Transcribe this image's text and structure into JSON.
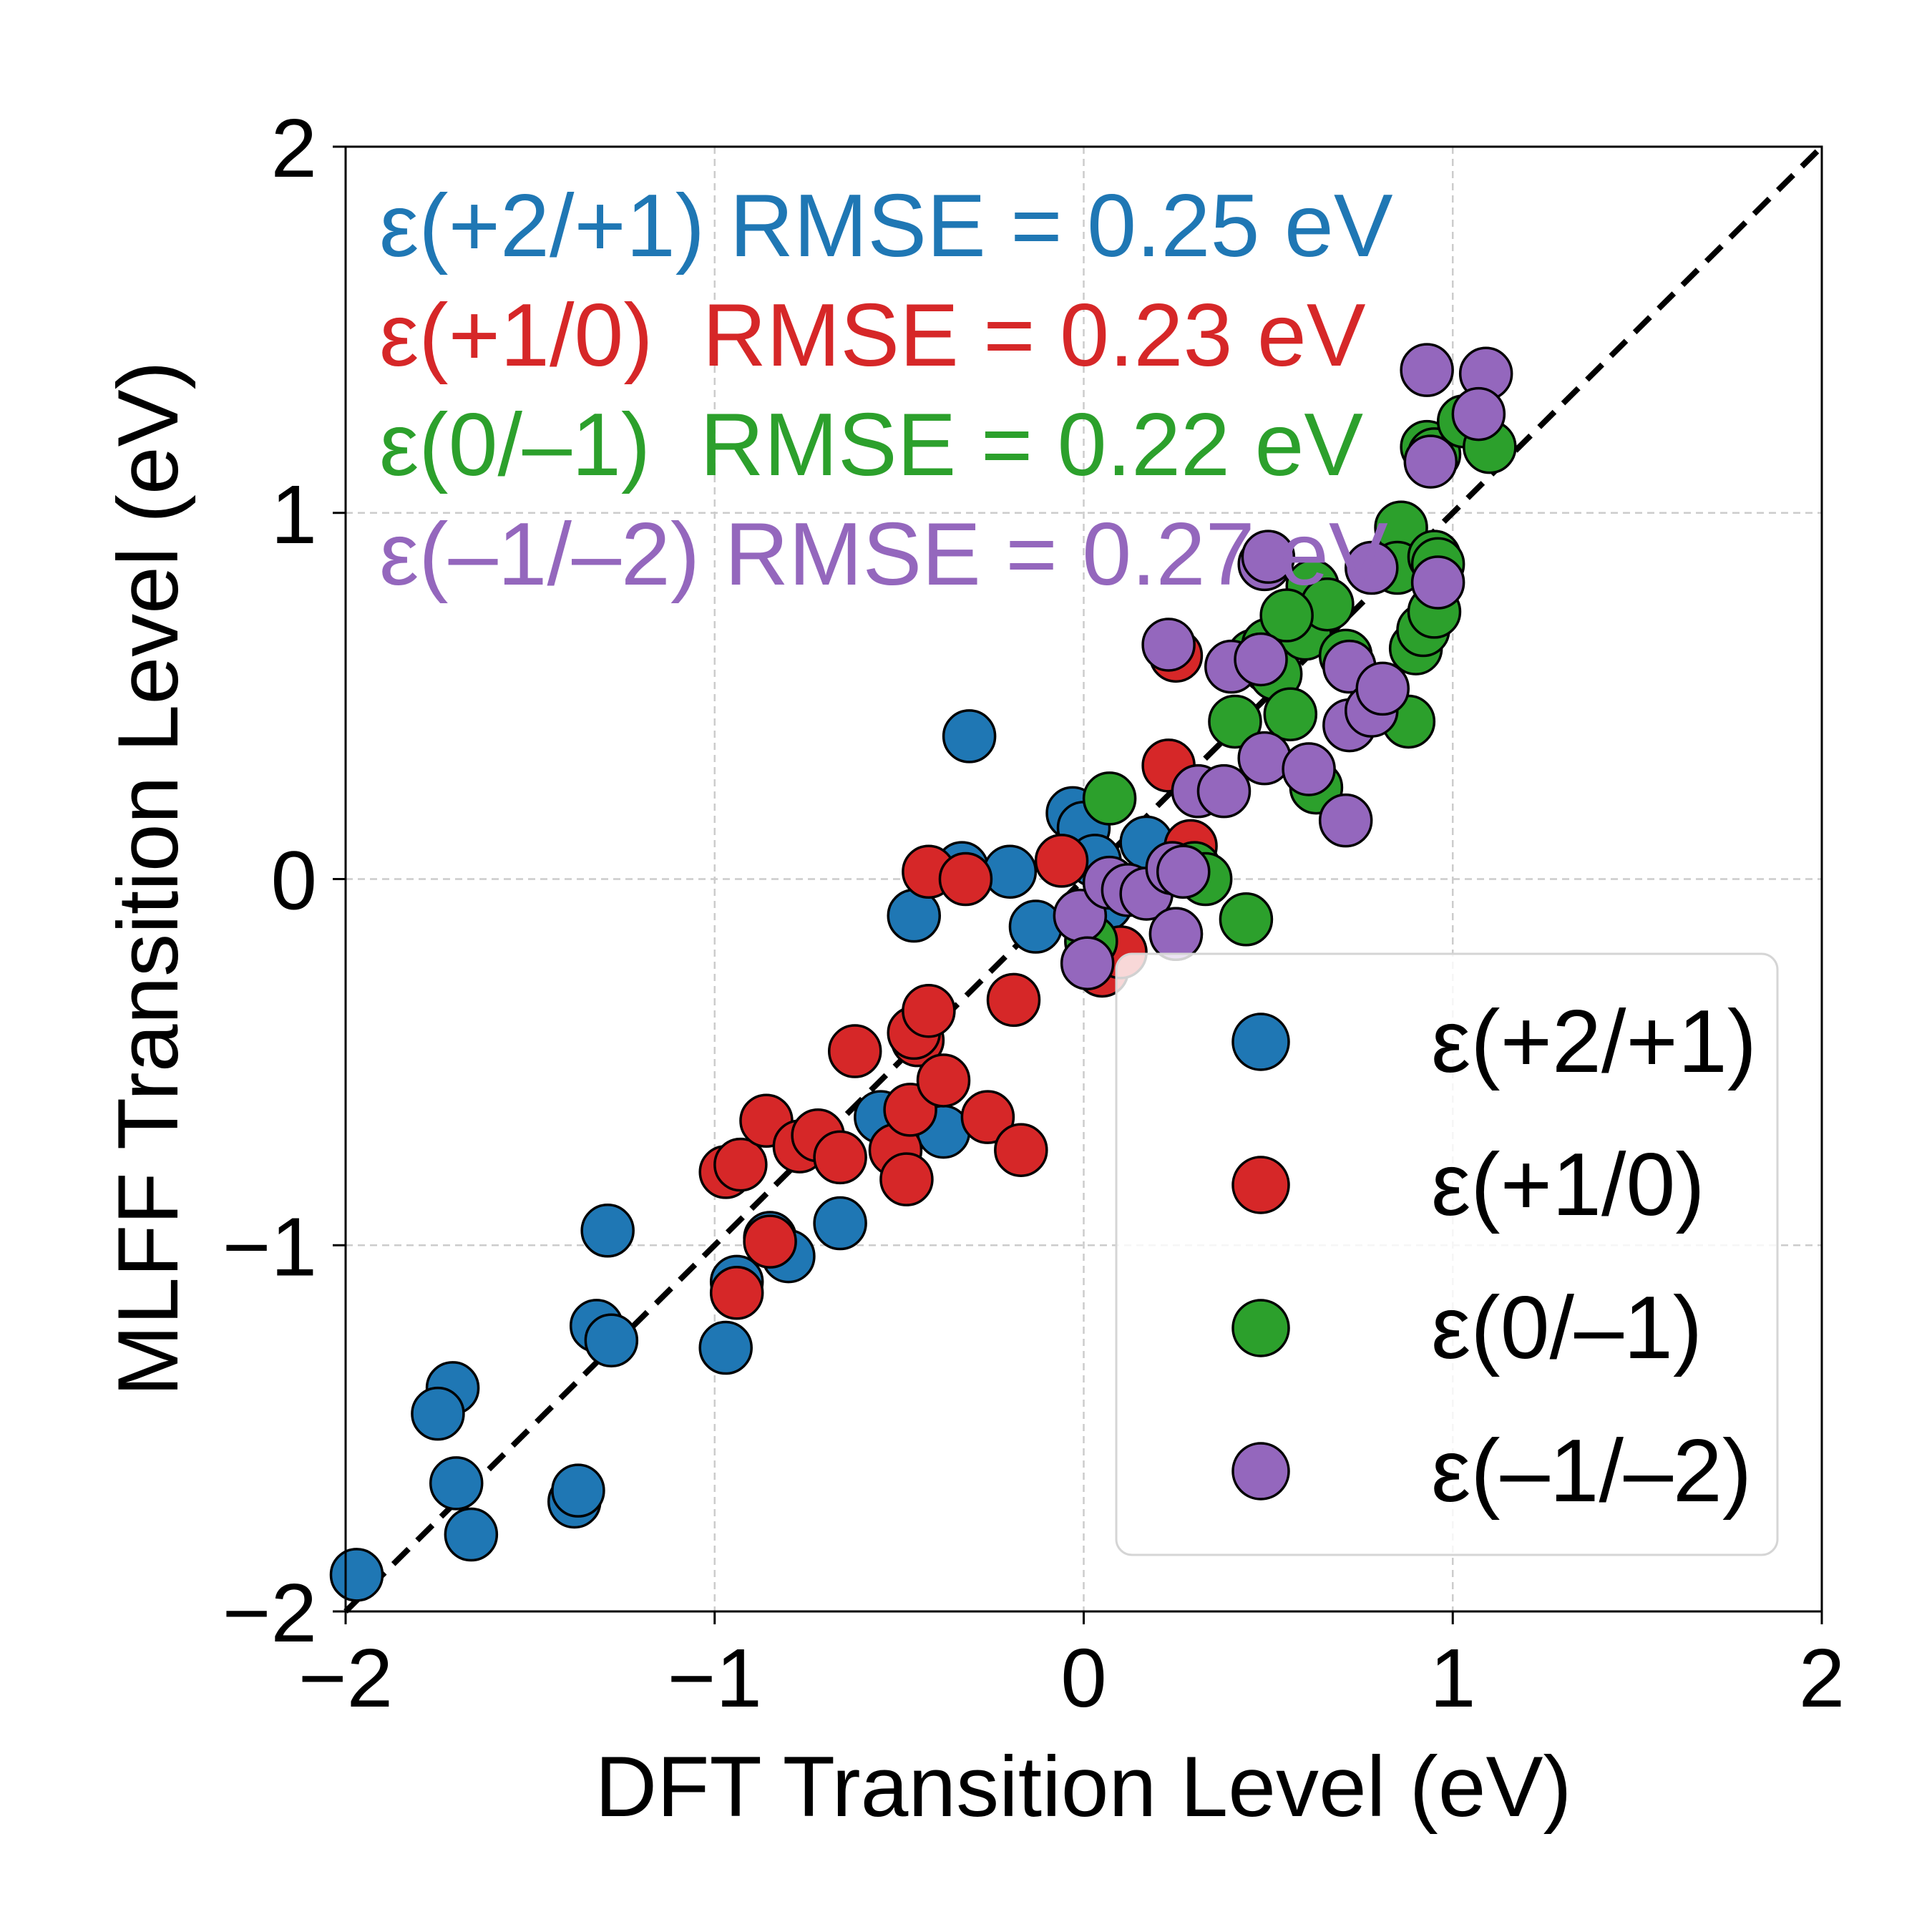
{
  "chart_data": {
    "type": "scatter",
    "title": "",
    "xlabel": "DFT Transition Level (eV)",
    "ylabel": "MLFF Transition Level (eV)",
    "xlim": [
      -2,
      2
    ],
    "ylim": [
      -2,
      2
    ],
    "xticks": [
      -2,
      -1,
      0,
      1,
      2
    ],
    "yticks": [
      -2,
      -1,
      0,
      1,
      2
    ],
    "xtick_labels": [
      "−2",
      "−1",
      "0",
      "1",
      "2"
    ],
    "ytick_labels": [
      "−2",
      "−1",
      "0",
      "1",
      "2"
    ],
    "grid": true,
    "parity_line": true,
    "legend_position": "lower-right",
    "annotations": [
      {
        "text": "ε(+2/+1) RMSE = 0.25 eV",
        "color": "#1f77b4"
      },
      {
        "text": "ε(+1/0)  RMSE = 0.23 eV",
        "color": "#d62728"
      },
      {
        "text": "ε(0/–1)  RMSE = 0.22 eV",
        "color": "#2ca02c"
      },
      {
        "text": "ε(–1/–2) RMSE = 0.27 eV",
        "color": "#9467bd"
      }
    ],
    "series": [
      {
        "name": "ε(+2/+1)",
        "color": "#1f77b4",
        "points": [
          [
            -1.97,
            -1.9
          ],
          [
            -1.71,
            -1.39
          ],
          [
            -1.75,
            -1.46
          ],
          [
            -1.7,
            -1.65
          ],
          [
            -1.66,
            -1.79
          ],
          [
            -1.38,
            -1.7
          ],
          [
            -1.37,
            -1.67
          ],
          [
            -1.32,
            -1.22
          ],
          [
            -1.28,
            -1.26
          ],
          [
            -1.29,
            -0.96
          ],
          [
            -0.97,
            -1.28
          ],
          [
            -0.94,
            -1.1
          ],
          [
            -0.85,
            -0.98
          ],
          [
            -0.8,
            -1.03
          ],
          [
            -0.66,
            -0.94
          ],
          [
            -0.55,
            -0.65
          ],
          [
            -0.38,
            -0.69
          ],
          [
            -0.46,
            -0.1
          ],
          [
            -0.33,
            0.03
          ],
          [
            -0.31,
            0.39
          ],
          [
            -0.2,
            0.02
          ],
          [
            -0.13,
            -0.13
          ],
          [
            -0.03,
            0.18
          ],
          [
            0.0,
            0.14
          ],
          [
            0.03,
            0.05
          ],
          [
            0.17,
            0.1
          ],
          [
            0.06,
            -0.07
          ],
          [
            0.25,
            -0.15
          ]
        ]
      },
      {
        "name": "ε(+1/0)",
        "color": "#d62728",
        "points": [
          [
            -0.97,
            -0.8
          ],
          [
            -0.93,
            -0.78
          ],
          [
            -0.94,
            -1.13
          ],
          [
            -0.86,
            -0.66
          ],
          [
            -0.85,
            -0.99
          ],
          [
            -0.77,
            -0.73
          ],
          [
            -0.72,
            -0.7
          ],
          [
            -0.66,
            -0.76
          ],
          [
            -0.62,
            -0.47
          ],
          [
            -0.51,
            -0.74
          ],
          [
            -0.48,
            -0.82
          ],
          [
            -0.47,
            -0.63
          ],
          [
            -0.45,
            -0.44
          ],
          [
            -0.46,
            -0.42
          ],
          [
            -0.42,
            -0.36
          ],
          [
            -0.42,
            0.02
          ],
          [
            -0.38,
            -0.55
          ],
          [
            -0.32,
            0.0
          ],
          [
            -0.26,
            -0.65
          ],
          [
            -0.19,
            -0.33
          ],
          [
            -0.17,
            -0.74
          ],
          [
            -0.06,
            0.05
          ],
          [
            0.05,
            -0.25
          ],
          [
            0.1,
            -0.2
          ],
          [
            0.23,
            0.31
          ],
          [
            0.25,
            0.61
          ],
          [
            0.29,
            0.09
          ],
          [
            0.5,
            0.58
          ]
        ]
      },
      {
        "name": "ε(0/–1)",
        "color": "#2ca02c",
        "points": [
          [
            0.02,
            -0.17
          ],
          [
            0.07,
            0.22
          ],
          [
            0.3,
            0.03
          ],
          [
            0.33,
            0.0
          ],
          [
            0.44,
            -0.11
          ],
          [
            0.41,
            0.43
          ],
          [
            0.46,
            0.61
          ],
          [
            0.5,
            0.64
          ],
          [
            0.52,
            0.56
          ],
          [
            0.56,
            0.45
          ],
          [
            0.6,
            0.67
          ],
          [
            0.62,
            0.8
          ],
          [
            0.66,
            0.75
          ],
          [
            0.71,
            0.61
          ],
          [
            0.63,
            0.25
          ],
          [
            0.86,
            0.96
          ],
          [
            0.85,
            0.85
          ],
          [
            0.9,
            0.63
          ],
          [
            0.92,
            0.68
          ],
          [
            0.95,
            0.73
          ],
          [
            0.95,
            0.88
          ],
          [
            0.96,
            0.86
          ],
          [
            0.93,
            1.18
          ],
          [
            0.95,
            1.16
          ],
          [
            0.88,
            0.43
          ],
          [
            1.03,
            1.25
          ],
          [
            1.1,
            1.18
          ],
          [
            0.55,
            0.72
          ]
        ]
      },
      {
        "name": "ε(–1/–2)",
        "color": "#9467bd",
        "points": [
          [
            -0.01,
            -0.1
          ],
          [
            0.01,
            -0.23
          ],
          [
            0.07,
            -0.01
          ],
          [
            0.12,
            -0.03
          ],
          [
            0.17,
            -0.04
          ],
          [
            0.24,
            0.03
          ],
          [
            0.25,
            -0.15
          ],
          [
            0.23,
            0.64
          ],
          [
            0.31,
            0.24
          ],
          [
            0.38,
            0.24
          ],
          [
            0.4,
            0.58
          ],
          [
            0.48,
            0.6
          ],
          [
            0.49,
            0.33
          ],
          [
            0.49,
            0.86
          ],
          [
            0.61,
            0.3
          ],
          [
            0.72,
            0.42
          ],
          [
            0.71,
            0.16
          ],
          [
            0.72,
            0.58
          ],
          [
            0.78,
            0.46
          ],
          [
            0.81,
            0.52
          ],
          [
            0.78,
            0.85
          ],
          [
            0.96,
            0.81
          ],
          [
            0.93,
            1.39
          ],
          [
            0.94,
            1.14
          ],
          [
            1.09,
            1.38
          ],
          [
            1.07,
            1.27
          ],
          [
            0.5,
            0.88
          ],
          [
            0.27,
            0.02
          ]
        ]
      }
    ]
  }
}
